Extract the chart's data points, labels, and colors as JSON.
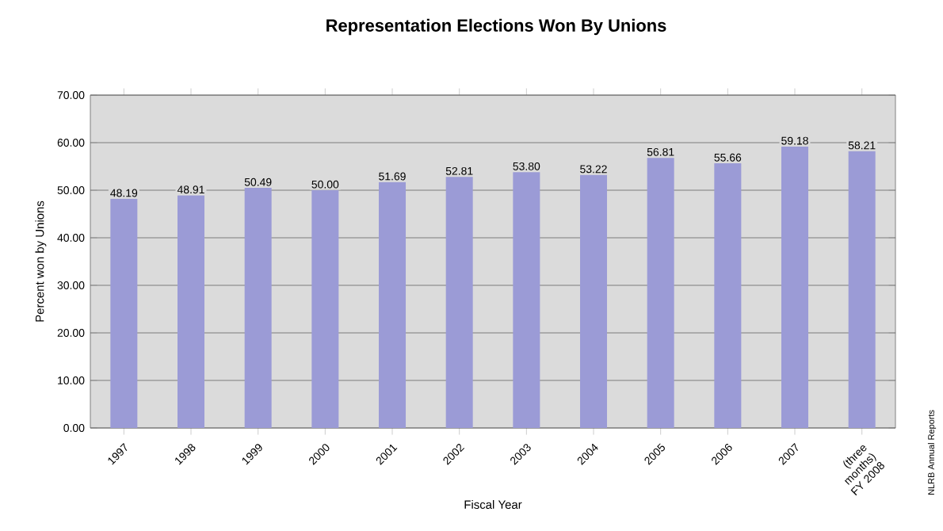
{
  "chart_data": {
    "type": "bar",
    "title": "Representation Elections Won By Unions",
    "xlabel": "Fiscal Year",
    "ylabel": "Percent won by Unions",
    "categories": [
      "1997",
      "1998",
      "1999",
      "2000",
      "2001",
      "2002",
      "2003",
      "2004",
      "2005",
      "2006",
      "2007",
      "(three months) FY 2008"
    ],
    "values": [
      48.19,
      48.91,
      50.49,
      50.0,
      51.69,
      52.81,
      53.8,
      53.22,
      56.81,
      55.66,
      59.18,
      58.21
    ],
    "value_labels": [
      "48.19",
      "48.91",
      "50.49",
      "50.00",
      "51.69",
      "52.81",
      "53.80",
      "53.22",
      "56.81",
      "55.66",
      "59.18",
      "58.21"
    ],
    "color": "#9b9bd6",
    "ylim": [
      0,
      70
    ],
    "yticks": [
      {
        "value": 0,
        "label": "0.00"
      },
      {
        "value": 10,
        "label": "10.00"
      },
      {
        "value": 20,
        "label": "20.00"
      },
      {
        "value": 30,
        "label": "30.00"
      },
      {
        "value": 40,
        "label": "40.00"
      },
      {
        "value": 50,
        "label": "50.00"
      },
      {
        "value": 60,
        "label": "60.00"
      },
      {
        "value": 70,
        "label": "70.00"
      }
    ],
    "grid": "y",
    "annotations": [
      "NLRB Annual Reports"
    ]
  }
}
